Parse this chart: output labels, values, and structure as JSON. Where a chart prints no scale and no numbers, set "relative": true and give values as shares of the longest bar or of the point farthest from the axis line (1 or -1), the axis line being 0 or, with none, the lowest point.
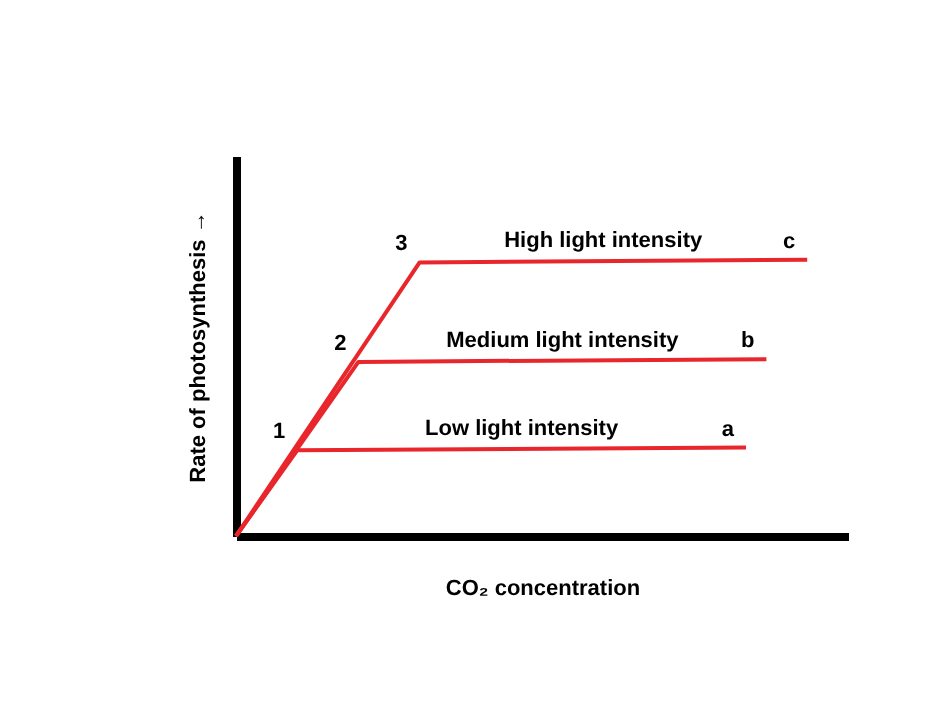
{
  "chart_data": {
    "type": "line",
    "relative": true,
    "xlabel": "CO₂ concentration",
    "ylabel": "Rate of photosynthesis   →",
    "categories": [
      null,
      null,
      null,
      null,
      null,
      null,
      null,
      null,
      null,
      null,
      null,
      null,
      null,
      null,
      null,
      null,
      null,
      null,
      null,
      null,
      null,
      null,
      null,
      null,
      null,
      null,
      null,
      null,
      null,
      null,
      null
    ],
    "line_style": "solid",
    "series": [
      {
        "name": "Low light intensity",
        "color": "#e8262c",
        "values": [
          0,
          null,
          null,
          0.31,
          null,
          null,
          null,
          null,
          null,
          null,
          null,
          null,
          null,
          null,
          null,
          null,
          null,
          null,
          null,
          null,
          null,
          null,
          null,
          null,
          null,
          0.32,
          null,
          null,
          null,
          null,
          null
        ]
      },
      {
        "name": "Medium light intensity",
        "color": "#e8262c",
        "values": [
          0,
          null,
          null,
          null,
          null,
          null,
          0.63,
          null,
          null,
          null,
          null,
          null,
          null,
          null,
          null,
          null,
          null,
          null,
          null,
          null,
          null,
          null,
          null,
          null,
          null,
          null,
          0.64,
          null,
          null,
          null,
          null
        ]
      },
      {
        "name": "High light intensity",
        "color": "#e8262c",
        "values": [
          0,
          null,
          null,
          null,
          null,
          null,
          null,
          null,
          null,
          0.99,
          null,
          null,
          null,
          null,
          null,
          null,
          null,
          null,
          null,
          null,
          null,
          null,
          null,
          null,
          null,
          null,
          null,
          null,
          1,
          null,
          null
        ]
      }
    ],
    "annotations": [
      "1",
      "2",
      "3",
      "a",
      "b",
      "c"
    ]
  }
}
